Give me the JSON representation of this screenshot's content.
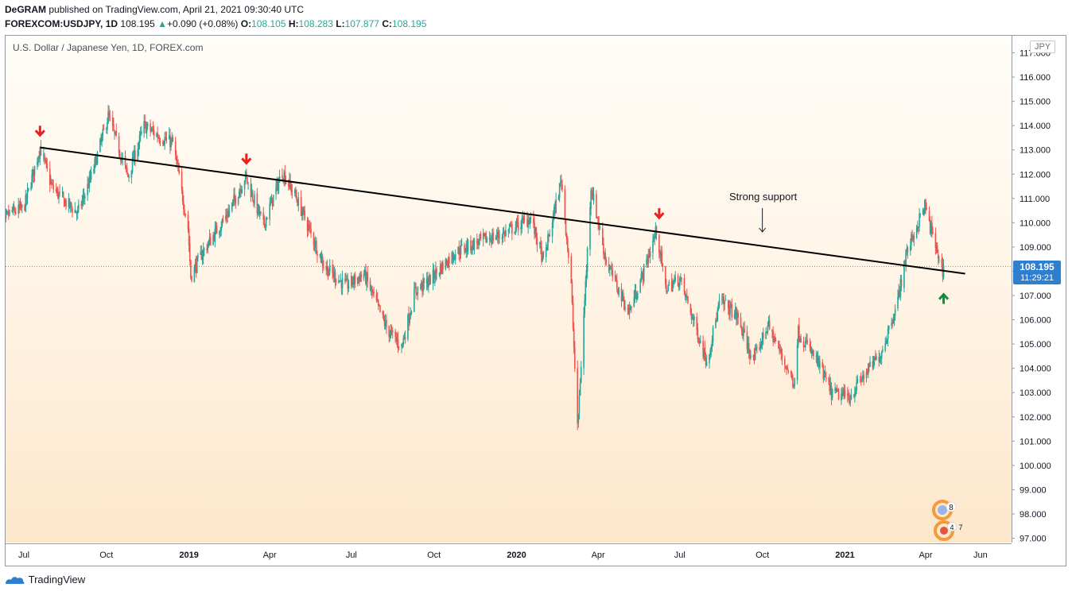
{
  "header": {
    "publisher": "DeGRAM",
    "published_text": "published on TradingView.com, April 21, 2021 09:30:40 UTC",
    "symbol": "FOREXCOM:USDJPY",
    "interval": "1D",
    "last": "108.195",
    "change": "+0.090 (+0.08%)",
    "open_label": "O:",
    "open": "108.105",
    "high_label": "H:",
    "high": "108.283",
    "low_label": "L:",
    "low": "107.877",
    "close_label": "C:",
    "close": "108.195"
  },
  "legend": {
    "title": "U.S. Dollar / Japanese Yen, 1D, FOREX.com"
  },
  "price_badge": {
    "price": "108.195",
    "countdown": "11:29:21"
  },
  "annotation": {
    "text": "Strong support"
  },
  "footer": {
    "brand": "TradingView"
  },
  "indicator_badges": {
    "top": "8",
    "bottom_left": "4",
    "bottom_right": "7"
  },
  "colors": {
    "up": "#26a69a",
    "down": "#ef5350",
    "accent": "#2f7fd1",
    "arrow_down": "#e8211f",
    "arrow_up": "#138a3b",
    "trendline": "#000000"
  },
  "chart_data": {
    "type": "candlestick",
    "title": "U.S. Dollar / Japanese Yen, 1D, FOREX.com",
    "y_unit": "JPY",
    "ylim": [
      96.8,
      117.8
    ],
    "y_ticks": [
      "97.000",
      "98.000",
      "99.000",
      "100.000",
      "101.000",
      "102.000",
      "103.000",
      "104.000",
      "105.000",
      "106.000",
      "107.000",
      "108.000",
      "109.000",
      "110.000",
      "111.000",
      "112.000",
      "113.000",
      "114.000",
      "115.000",
      "116.000",
      "117.000"
    ],
    "x_ticks": [
      {
        "label": "Jul",
        "date": "2018-07-01",
        "bold": false
      },
      {
        "label": "Oct",
        "date": "2018-10-01",
        "bold": false
      },
      {
        "label": "2019",
        "date": "2019-01-01",
        "bold": true
      },
      {
        "label": "Apr",
        "date": "2019-04-01",
        "bold": false
      },
      {
        "label": "Jul",
        "date": "2019-07-01",
        "bold": false
      },
      {
        "label": "Oct",
        "date": "2019-10-01",
        "bold": false
      },
      {
        "label": "2020",
        "date": "2020-01-01",
        "bold": true
      },
      {
        "label": "Apr",
        "date": "2020-04-01",
        "bold": false
      },
      {
        "label": "Jul",
        "date": "2020-07-01",
        "bold": false
      },
      {
        "label": "Oct",
        "date": "2020-10-01",
        "bold": false
      },
      {
        "label": "2021",
        "date": "2021-01-01",
        "bold": true
      },
      {
        "label": "Apr",
        "date": "2021-04-01",
        "bold": false
      },
      {
        "label": "Jun",
        "date": "2021-06-01",
        "bold": false
      }
    ],
    "price_path": [
      [
        "2018-06-01",
        109.5
      ],
      [
        "2018-06-15",
        110.4
      ],
      [
        "2018-07-01",
        110.6
      ],
      [
        "2018-07-19",
        113.1
      ],
      [
        "2018-08-01",
        111.5
      ],
      [
        "2018-08-15",
        110.9
      ],
      [
        "2018-08-30",
        110.4
      ],
      [
        "2018-09-15",
        112.0
      ],
      [
        "2018-10-03",
        114.4
      ],
      [
        "2018-10-25",
        111.9
      ],
      [
        "2018-11-12",
        114.0
      ],
      [
        "2018-12-01",
        113.5
      ],
      [
        "2018-12-14",
        113.3
      ],
      [
        "2018-12-31",
        109.8
      ],
      [
        "2019-01-03",
        107.8
      ],
      [
        "2019-01-15",
        108.7
      ],
      [
        "2019-02-15",
        110.5
      ],
      [
        "2019-03-05",
        111.9
      ],
      [
        "2019-03-25",
        109.9
      ],
      [
        "2019-04-15",
        112.1
      ],
      [
        "2019-05-01",
        111.0
      ],
      [
        "2019-06-01",
        108.2
      ],
      [
        "2019-06-25",
        107.4
      ],
      [
        "2019-07-15",
        107.9
      ],
      [
        "2019-08-10",
        105.6
      ],
      [
        "2019-08-26",
        104.9
      ],
      [
        "2019-09-10",
        107.2
      ],
      [
        "2019-09-25",
        107.6
      ],
      [
        "2019-10-25",
        108.8
      ],
      [
        "2019-11-25",
        109.3
      ],
      [
        "2019-12-15",
        109.5
      ],
      [
        "2020-01-17",
        110.2
      ],
      [
        "2020-01-31",
        108.4
      ],
      [
        "2020-02-20",
        111.8
      ],
      [
        "2020-03-02",
        107.4
      ],
      [
        "2020-03-09",
        101.5
      ],
      [
        "2020-03-24",
        111.5
      ],
      [
        "2020-04-10",
        108.4
      ],
      [
        "2020-05-05",
        106.3
      ],
      [
        "2020-05-20",
        107.8
      ],
      [
        "2020-06-05",
        109.7
      ],
      [
        "2020-06-15",
        107.3
      ],
      [
        "2020-07-01",
        107.7
      ],
      [
        "2020-07-31",
        104.3
      ],
      [
        "2020-08-15",
        106.8
      ],
      [
        "2020-09-02",
        106.2
      ],
      [
        "2020-09-21",
        104.3
      ],
      [
        "2020-10-07",
        105.8
      ],
      [
        "2020-11-05",
        103.4
      ],
      [
        "2020-11-10",
        105.5
      ],
      [
        "2020-12-01",
        104.3
      ],
      [
        "2020-12-17",
        103.0
      ],
      [
        "2021-01-06",
        102.8
      ],
      [
        "2021-01-20",
        103.6
      ],
      [
        "2021-02-10",
        104.6
      ],
      [
        "2021-03-01",
        106.8
      ],
      [
        "2021-03-10",
        108.7
      ],
      [
        "2021-03-31",
        110.7
      ],
      [
        "2021-04-07",
        109.7
      ],
      [
        "2021-04-20",
        108.0
      ],
      [
        "2021-04-21",
        108.195
      ]
    ],
    "trendline": {
      "start": [
        "2018-07-19",
        113.1
      ],
      "end": [
        "2021-05-15",
        107.9
      ]
    },
    "last_price": 108.195,
    "arrows_down": [
      [
        "2018-07-19",
        113.8
      ],
      [
        "2019-03-06",
        112.65
      ],
      [
        "2020-06-08",
        110.4
      ]
    ],
    "arrow_up": [
      "2021-04-21",
      106.85
    ],
    "annotation_point": [
      "2020-10-01",
      110.8
    ]
  }
}
